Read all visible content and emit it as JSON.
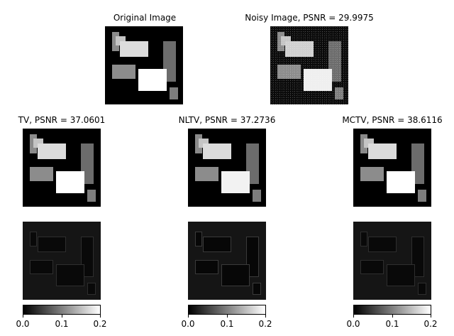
{
  "titles": {
    "original": "Original Image",
    "noisy": "Noisy Image, PSNR = 29.9975",
    "tv": "TV, PSNR = 37.0601",
    "nltv": "NLTV, PSNR = 37.2736",
    "mctv": "MCTV, PSNR = 38.6116"
  },
  "colorbar_ticks": [
    "0.0",
    "0.1",
    "0.2"
  ]
}
